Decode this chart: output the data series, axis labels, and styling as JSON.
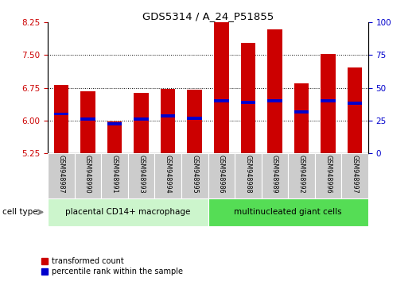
{
  "title": "GDS5314 / A_24_P51855",
  "samples": [
    "GSM948987",
    "GSM948990",
    "GSM948991",
    "GSM948993",
    "GSM948994",
    "GSM948995",
    "GSM948986",
    "GSM948988",
    "GSM948989",
    "GSM948992",
    "GSM948996",
    "GSM948997"
  ],
  "red_values": [
    6.82,
    6.67,
    5.97,
    6.63,
    6.73,
    6.7,
    8.37,
    7.78,
    8.1,
    6.85,
    7.53,
    7.22
  ],
  "blue_values": [
    6.15,
    6.03,
    5.93,
    6.03,
    6.1,
    6.05,
    6.45,
    6.42,
    6.45,
    6.2,
    6.45,
    6.4
  ],
  "ylim_left": [
    5.25,
    8.25
  ],
  "ylim_right": [
    0,
    100
  ],
  "yticks_left": [
    5.25,
    6.0,
    6.75,
    7.5,
    8.25
  ],
  "yticks_right": [
    0,
    25,
    50,
    75,
    100
  ],
  "groups": [
    {
      "label": "placental CD14+ macrophage",
      "count": 6,
      "color": "#ccf5cc"
    },
    {
      "label": "multinucleated giant cells",
      "count": 6,
      "color": "#55dd55"
    }
  ],
  "cell_type_label": "cell type",
  "legend": [
    {
      "label": "transformed count",
      "color": "#cc0000"
    },
    {
      "label": "percentile rank within the sample",
      "color": "#0000cc"
    }
  ],
  "bar_width": 0.55,
  "bar_bottom": 5.25,
  "bar_color": "#cc0000",
  "blue_marker_color": "#0000cc",
  "grid_color": "#000000",
  "sample_box_color": "#cccccc",
  "tick_color_left": "#cc0000",
  "tick_color_right": "#0000cc",
  "blue_bar_height": 0.07
}
